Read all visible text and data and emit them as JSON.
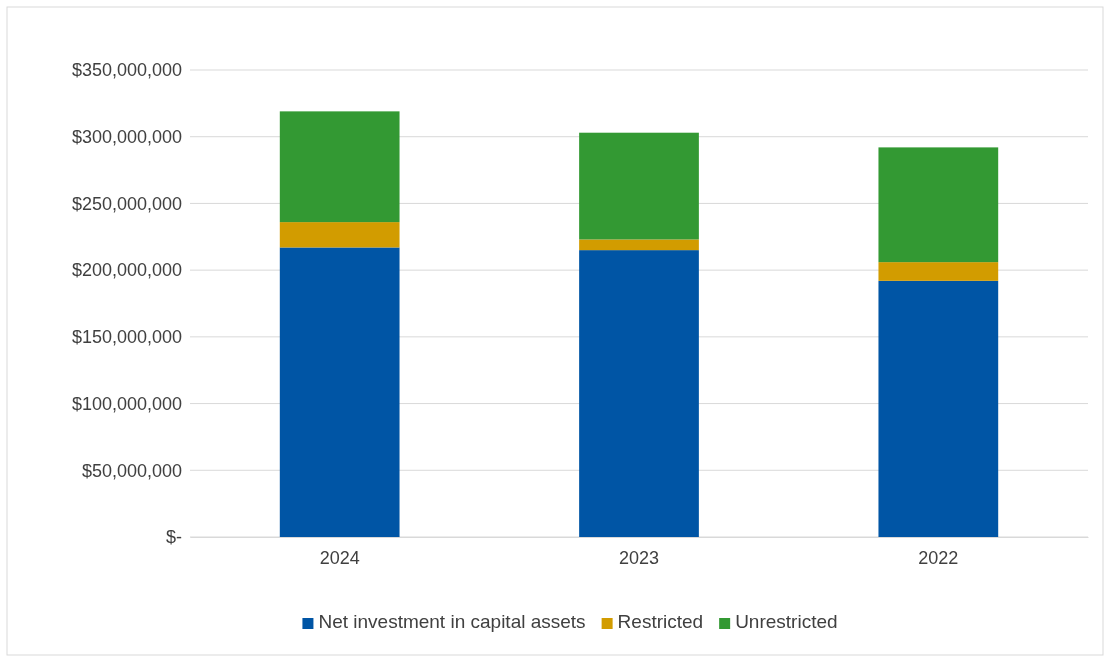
{
  "chart_data": {
    "type": "bar",
    "stacked": true,
    "categories": [
      "2024",
      "2023",
      "2022"
    ],
    "series": [
      {
        "name": "Net investment in capital assets",
        "color": "#0055a5",
        "values": [
          217000000,
          215000000,
          192000000
        ]
      },
      {
        "name": "Restricted",
        "color": "#d29c00",
        "values": [
          19000000,
          8000000,
          14000000
        ]
      },
      {
        "name": "Unrestricted",
        "color": "#339933",
        "values": [
          83000000,
          80000000,
          86000000
        ]
      }
    ],
    "ylim": [
      0,
      350000000
    ],
    "yticks": [
      {
        "value": 0,
        "label": "$-"
      },
      {
        "value": 50000000,
        "label": "$50,000,000"
      },
      {
        "value": 100000000,
        "label": "$100,000,000"
      },
      {
        "value": 150000000,
        "label": "$150,000,000"
      },
      {
        "value": 200000000,
        "label": "$200,000,000"
      },
      {
        "value": 250000000,
        "label": "$250,000,000"
      },
      {
        "value": 300000000,
        "label": "$300,000,000"
      },
      {
        "value": 350000000,
        "label": "$350,000,000"
      }
    ],
    "grid": "y",
    "legend": "bottom"
  }
}
